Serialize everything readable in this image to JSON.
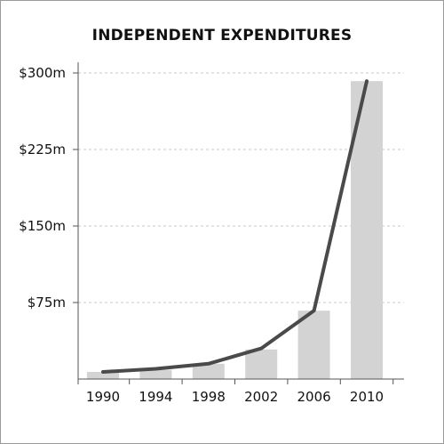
{
  "chart_data": {
    "type": "bar",
    "title": "INDEPENDENT EXPENDITURES",
    "categories": [
      "1990",
      "1994",
      "1998",
      "2002",
      "2006",
      "2010"
    ],
    "series": [
      {
        "type": "bar",
        "values": [
          7,
          9,
          15,
          29,
          67,
          292
        ],
        "color": "#d3d3d3"
      },
      {
        "type": "line",
        "values": [
          7,
          10,
          15,
          30,
          67,
          292
        ],
        "color": "#4a4a4a"
      }
    ],
    "y_ticks": [
      {
        "value": 75,
        "label": "$75m"
      },
      {
        "value": 150,
        "label": "$150m"
      },
      {
        "value": 225,
        "label": "$225m"
      },
      {
        "value": 300,
        "label": "$300m"
      }
    ],
    "ylim": [
      0,
      300
    ],
    "grid": "horizontal-dashed",
    "legend": "none"
  }
}
